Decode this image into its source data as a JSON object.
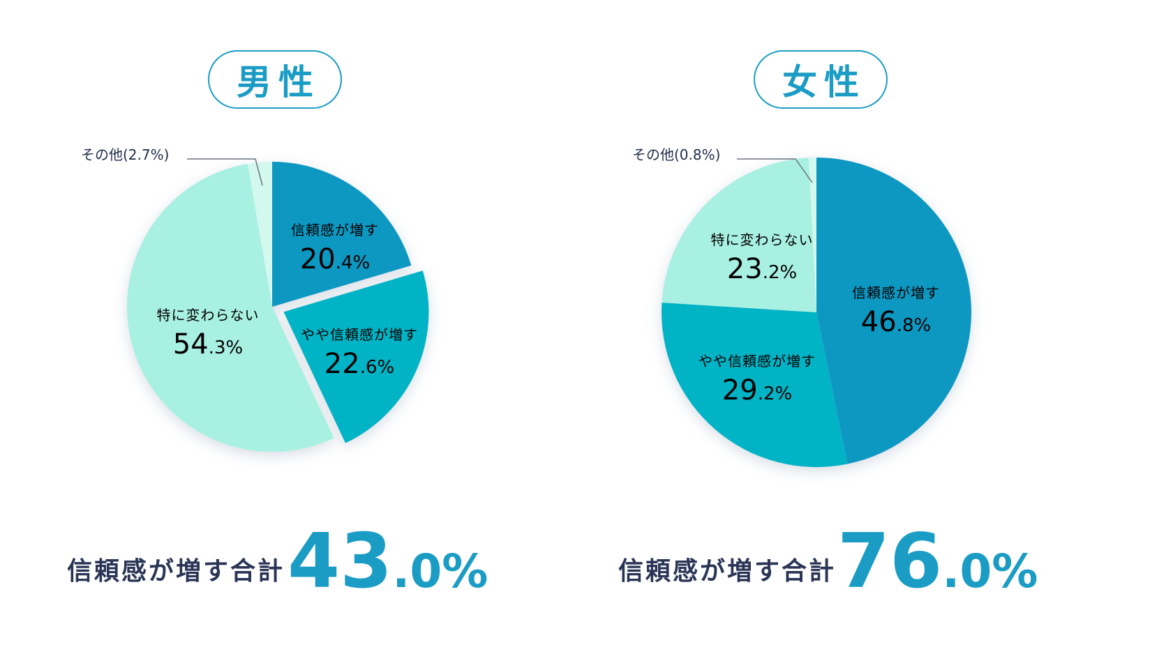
{
  "chart_data": [
    {
      "type": "pie",
      "title": "男性",
      "slices": [
        {
          "label": "信頼感が増す",
          "value": 20.4,
          "int": "20",
          "dec": ".4%",
          "color": "#0a98c2",
          "text": "light"
        },
        {
          "label": "やや信頼感が増す",
          "value": 22.6,
          "int": "22",
          "dec": ".6%",
          "color": "#00b3c5",
          "text": "light"
        },
        {
          "label": "特に変わらない",
          "value": 54.3,
          "int": "54",
          "dec": ".3%",
          "color": "#a8f0e2",
          "text": "dark"
        },
        {
          "label": "その他",
          "value": 2.7,
          "note": "その他(2.7%)",
          "color": "#d3f8ee"
        }
      ],
      "total_label": "信頼感が増す合計",
      "total_int": "43",
      "total_dec": ".0%"
    },
    {
      "type": "pie",
      "title": "女性",
      "slices": [
        {
          "label": "信頼感が増す",
          "value": 46.8,
          "int": "46",
          "dec": ".8%",
          "color": "#0a98c2",
          "text": "light"
        },
        {
          "label": "やや信頼感が増す",
          "value": 29.2,
          "int": "29",
          "dec": ".2%",
          "color": "#00b3c5",
          "text": "light"
        },
        {
          "label": "特に変わらない",
          "value": 23.2,
          "int": "23",
          "dec": ".2%",
          "color": "#a8f0e2",
          "text": "dark"
        },
        {
          "label": "その他",
          "value": 0.8,
          "note": "その他(0.8%)",
          "color": "#d3f8ee"
        }
      ],
      "total_label": "信頼感が増す合計",
      "total_int": "76",
      "total_dec": ".0%"
    }
  ],
  "colors": {
    "accent": "#1a9cc4",
    "dark_text": "#1f2b4c",
    "leader_line": "#6b7280"
  }
}
